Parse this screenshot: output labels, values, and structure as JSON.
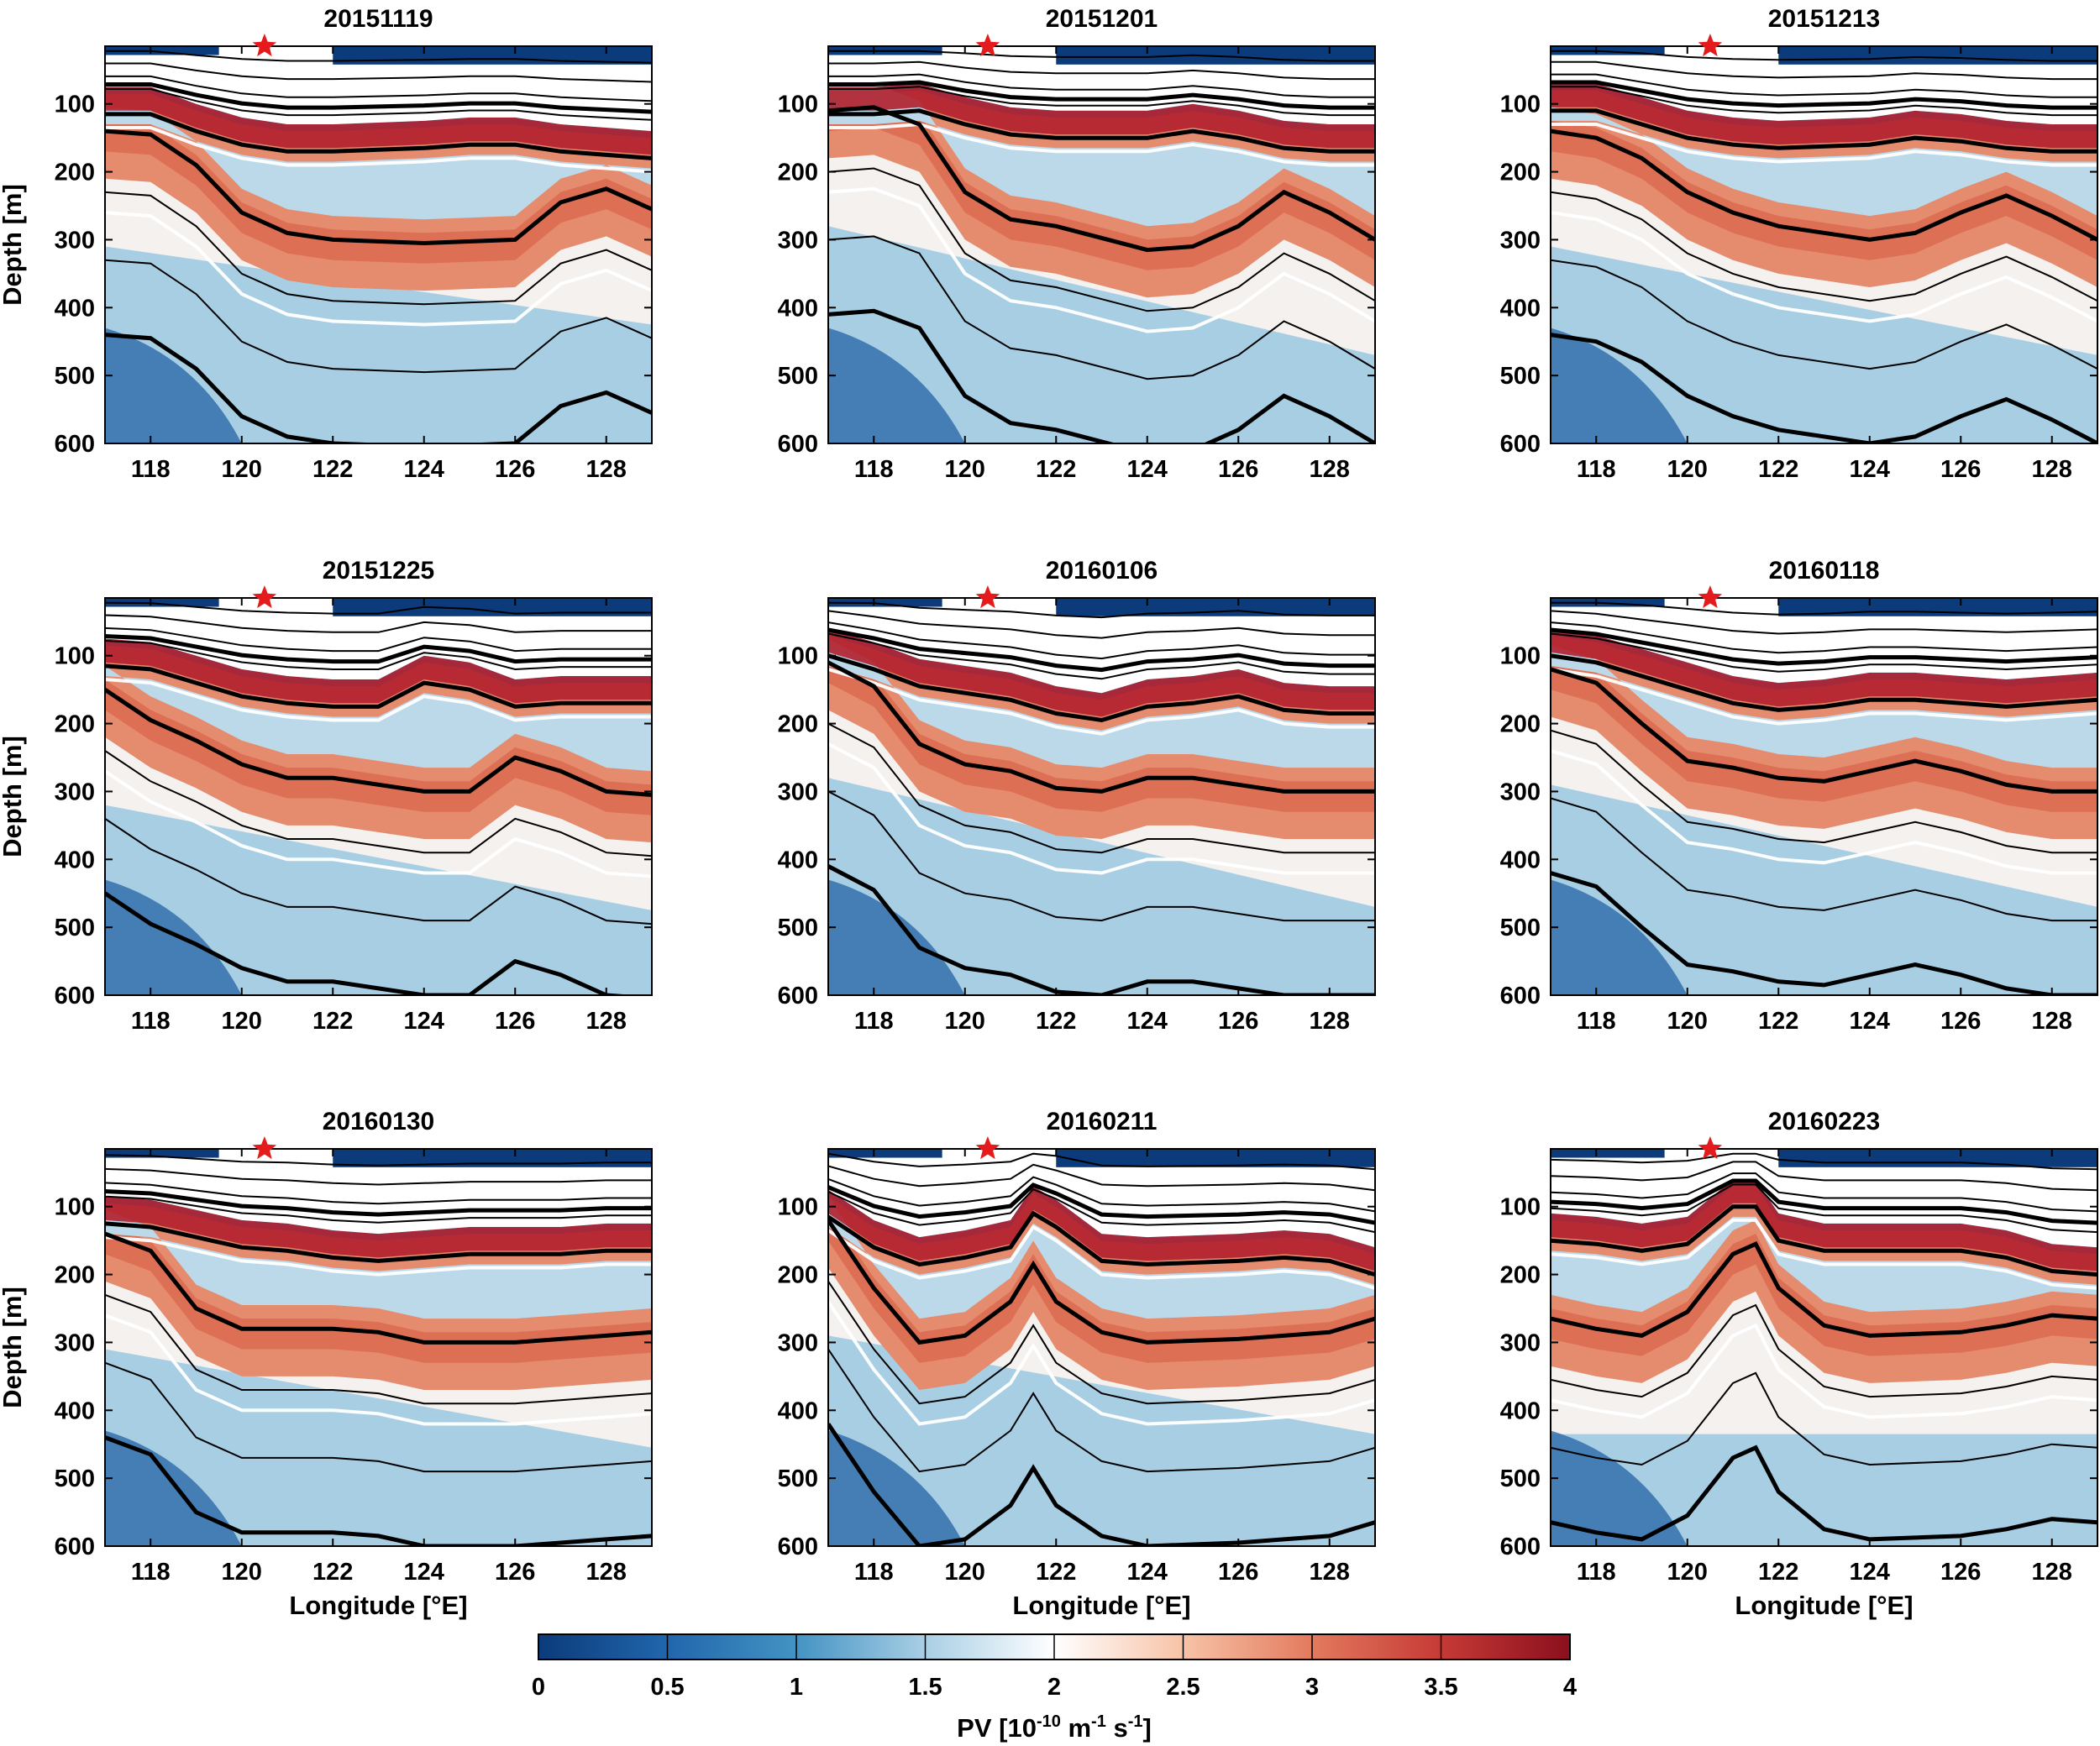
{
  "figure": {
    "colorbar_label": "PV [10",
    "colorbar_label_exp1": "-10",
    "colorbar_label_mid": " m",
    "colorbar_label_exp2": "-1",
    "colorbar_label_mid2": " s",
    "colorbar_label_exp3": "-1",
    "colorbar_label_end": "]",
    "colors": {
      "low": "#0b3b7a",
      "mid": "#ffffff",
      "high": "#8b0f1e",
      "star": "#e41a1c"
    }
  },
  "chart_data": {
    "type": "heatmap",
    "variable": "PV",
    "xlabel": "Longitude [°E]",
    "ylabel": "Depth [m]",
    "xlim": [
      117,
      129
    ],
    "ylim": [
      600,
      15
    ],
    "xticks": [
      118,
      120,
      122,
      124,
      126,
      128
    ],
    "yticks": [
      100,
      200,
      300,
      400,
      500,
      600
    ],
    "star_longitude": 120.5,
    "colorbar": {
      "range": [
        0,
        4
      ],
      "ticks": [
        "0",
        "0.5",
        "1",
        "1.5",
        "2",
        "2.5",
        "3",
        "3.5",
        "4"
      ]
    },
    "panels": [
      {
        "title": "20151119",
        "thick_isopycnals": [
          [
            [
              117,
              115
            ],
            [
              118,
              115
            ],
            [
              119,
              140
            ],
            [
              120,
              160
            ],
            [
              121,
              170
            ],
            [
              122,
              170
            ],
            [
              124,
              165
            ],
            [
              125,
              160
            ],
            [
              126,
              160
            ],
            [
              127,
              170
            ],
            [
              128,
              175
            ],
            [
              129,
              180
            ]
          ],
          [
            [
              117,
              140
            ],
            [
              118,
              145
            ],
            [
              119,
              190
            ],
            [
              120,
              260
            ],
            [
              121,
              290
            ],
            [
              122,
              300
            ],
            [
              124,
              305
            ],
            [
              126,
              300
            ],
            [
              127,
              245
            ],
            [
              128,
              225
            ],
            [
              129,
              255
            ]
          ]
        ]
      },
      {
        "title": "20151201",
        "thick_isopycnals": [
          [
            [
              117,
              115
            ],
            [
              118,
              115
            ],
            [
              119,
              110
            ],
            [
              120,
              130
            ],
            [
              121,
              145
            ],
            [
              122,
              150
            ],
            [
              124,
              150
            ],
            [
              125,
              140
            ],
            [
              126,
              150
            ],
            [
              127,
              165
            ],
            [
              128,
              170
            ],
            [
              129,
              170
            ]
          ],
          [
            [
              117,
              110
            ],
            [
              118,
              105
            ],
            [
              119,
              130
            ],
            [
              120,
              230
            ],
            [
              121,
              270
            ],
            [
              122,
              280
            ],
            [
              124,
              315
            ],
            [
              125,
              310
            ],
            [
              126,
              280
            ],
            [
              127,
              230
            ],
            [
              128,
              260
            ],
            [
              129,
              300
            ]
          ]
        ]
      },
      {
        "title": "20151213",
        "thick_isopycnals": [
          [
            [
              117,
              110
            ],
            [
              118,
              110
            ],
            [
              119,
              130
            ],
            [
              120,
              150
            ],
            [
              121,
              160
            ],
            [
              122,
              165
            ],
            [
              124,
              160
            ],
            [
              125,
              150
            ],
            [
              126,
              155
            ],
            [
              127,
              165
            ],
            [
              128,
              170
            ],
            [
              129,
              170
            ]
          ],
          [
            [
              117,
              140
            ],
            [
              118,
              150
            ],
            [
              119,
              180
            ],
            [
              120,
              230
            ],
            [
              121,
              260
            ],
            [
              122,
              280
            ],
            [
              124,
              300
            ],
            [
              125,
              290
            ],
            [
              126,
              260
            ],
            [
              127,
              235
            ],
            [
              128,
              265
            ],
            [
              129,
              300
            ]
          ]
        ]
      },
      {
        "title": "20151225",
        "thick_isopycnals": [
          [
            [
              117,
              115
            ],
            [
              118,
              120
            ],
            [
              119,
              140
            ],
            [
              120,
              160
            ],
            [
              121,
              170
            ],
            [
              122,
              175
            ],
            [
              123,
              175
            ],
            [
              124,
              140
            ],
            [
              125,
              150
            ],
            [
              126,
              175
            ],
            [
              127,
              170
            ],
            [
              128,
              170
            ],
            [
              129,
              170
            ]
          ],
          [
            [
              117,
              150
            ],
            [
              118,
              195
            ],
            [
              119,
              225
            ],
            [
              120,
              260
            ],
            [
              121,
              280
            ],
            [
              122,
              280
            ],
            [
              124,
              300
            ],
            [
              125,
              300
            ],
            [
              126,
              250
            ],
            [
              127,
              270
            ],
            [
              128,
              300
            ],
            [
              129,
              305
            ]
          ]
        ]
      },
      {
        "title": "20160106",
        "thick_isopycnals": [
          [
            [
              117,
              100
            ],
            [
              118,
              120
            ],
            [
              119,
              145
            ],
            [
              120,
              155
            ],
            [
              121,
              165
            ],
            [
              122,
              185
            ],
            [
              123,
              195
            ],
            [
              124,
              175
            ],
            [
              125,
              170
            ],
            [
              126,
              160
            ],
            [
              127,
              180
            ],
            [
              128,
              185
            ],
            [
              129,
              185
            ]
          ],
          [
            [
              117,
              110
            ],
            [
              118,
              145
            ],
            [
              119,
              230
            ],
            [
              120,
              260
            ],
            [
              121,
              270
            ],
            [
              122,
              295
            ],
            [
              123,
              300
            ],
            [
              124,
              280
            ],
            [
              125,
              280
            ],
            [
              126,
              290
            ],
            [
              127,
              300
            ],
            [
              128,
              300
            ],
            [
              129,
              300
            ]
          ]
        ]
      },
      {
        "title": "20160118",
        "thick_isopycnals": [
          [
            [
              117,
              100
            ],
            [
              118,
              110
            ],
            [
              119,
              130
            ],
            [
              120,
              150
            ],
            [
              121,
              170
            ],
            [
              122,
              180
            ],
            [
              123,
              175
            ],
            [
              124,
              165
            ],
            [
              125,
              165
            ],
            [
              126,
              170
            ],
            [
              127,
              175
            ],
            [
              128,
              170
            ],
            [
              129,
              165
            ]
          ],
          [
            [
              117,
              120
            ],
            [
              118,
              140
            ],
            [
              119,
              200
            ],
            [
              120,
              255
            ],
            [
              121,
              265
            ],
            [
              122,
              280
            ],
            [
              123,
              285
            ],
            [
              124,
              270
            ],
            [
              125,
              255
            ],
            [
              126,
              270
            ],
            [
              127,
              290
            ],
            [
              128,
              300
            ],
            [
              129,
              300
            ]
          ]
        ]
      },
      {
        "title": "20160130",
        "thick_isopycnals": [
          [
            [
              117,
              125
            ],
            [
              118,
              130
            ],
            [
              119,
              145
            ],
            [
              120,
              160
            ],
            [
              121,
              165
            ],
            [
              122,
              175
            ],
            [
              123,
              180
            ],
            [
              124,
              175
            ],
            [
              125,
              170
            ],
            [
              126,
              170
            ],
            [
              127,
              170
            ],
            [
              128,
              165
            ],
            [
              129,
              165
            ]
          ],
          [
            [
              117,
              140
            ],
            [
              118,
              165
            ],
            [
              119,
              250
            ],
            [
              120,
              280
            ],
            [
              121,
              280
            ],
            [
              122,
              280
            ],
            [
              123,
              285
            ],
            [
              124,
              300
            ],
            [
              125,
              300
            ],
            [
              126,
              300
            ],
            [
              127,
              295
            ],
            [
              128,
              290
            ],
            [
              129,
              285
            ]
          ]
        ]
      },
      {
        "title": "20160211",
        "thick_isopycnals": [
          [
            [
              117,
              115
            ],
            [
              118,
              160
            ],
            [
              119,
              185
            ],
            [
              120,
              175
            ],
            [
              121,
              160
            ],
            [
              121.5,
              110
            ],
            [
              122,
              130
            ],
            [
              123,
              180
            ],
            [
              124,
              185
            ],
            [
              126,
              180
            ],
            [
              127,
              175
            ],
            [
              128,
              180
            ],
            [
              129,
              200
            ]
          ],
          [
            [
              117,
              120
            ],
            [
              118,
              220
            ],
            [
              119,
              300
            ],
            [
              120,
              290
            ],
            [
              121,
              240
            ],
            [
              121.5,
              185
            ],
            [
              122,
              240
            ],
            [
              123,
              285
            ],
            [
              124,
              300
            ],
            [
              126,
              295
            ],
            [
              127,
              290
            ],
            [
              128,
              285
            ],
            [
              129,
              265
            ]
          ]
        ]
      },
      {
        "title": "20160223",
        "thick_isopycnals": [
          [
            [
              117,
              150
            ],
            [
              118,
              155
            ],
            [
              119,
              165
            ],
            [
              120,
              155
            ],
            [
              121,
              100
            ],
            [
              121.5,
              100
            ],
            [
              122,
              150
            ],
            [
              123,
              165
            ],
            [
              124,
              165
            ],
            [
              126,
              165
            ],
            [
              127,
              175
            ],
            [
              128,
              195
            ],
            [
              129,
              200
            ]
          ],
          [
            [
              117,
              265
            ],
            [
              118,
              280
            ],
            [
              119,
              290
            ],
            [
              120,
              255
            ],
            [
              121,
              170
            ],
            [
              121.5,
              155
            ],
            [
              122,
              220
            ],
            [
              123,
              275
            ],
            [
              124,
              290
            ],
            [
              126,
              285
            ],
            [
              127,
              275
            ],
            [
              128,
              260
            ],
            [
              129,
              265
            ]
          ]
        ]
      }
    ]
  }
}
